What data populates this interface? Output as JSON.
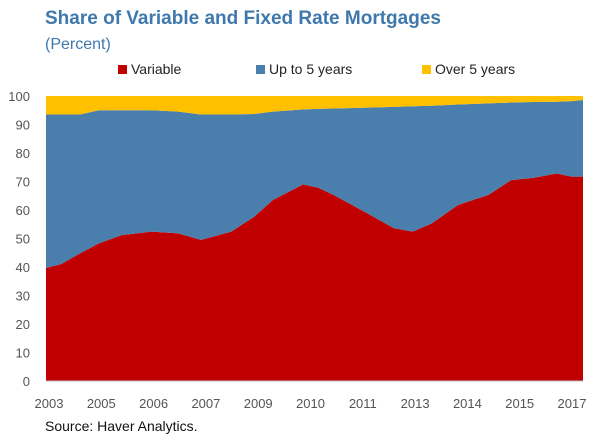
{
  "title": "Share of Variable and Fixed Rate Mortgages",
  "subtitle": "(Percent)",
  "source": "Source: Haver Analytics.",
  "chart_data": {
    "type": "area",
    "stacked": true,
    "title": "Share of Variable and Fixed Rate Mortgages",
    "ylabel": "Percent",
    "ylim": [
      0,
      100
    ],
    "yticks": [
      0,
      10,
      20,
      30,
      40,
      50,
      60,
      70,
      80,
      90,
      100
    ],
    "xlim": [
      2003.0,
      2017.2
    ],
    "xtick_labels": [
      "2003",
      "2005",
      "2006",
      "2007",
      "2009",
      "2010",
      "2011",
      "2013",
      "2014",
      "2015",
      "2017"
    ],
    "legend_position": "top",
    "x": [
      2003.0,
      2003.4,
      2003.9,
      2004.4,
      2005.0,
      2005.8,
      2006.5,
      2007.1,
      2007.9,
      2008.5,
      2009.0,
      2009.8,
      2010.2,
      2010.6,
      2011.5,
      2012.2,
      2012.7,
      2013.2,
      2013.9,
      2014.7,
      2015.3,
      2015.9,
      2016.5,
      2016.9,
      2017.2
    ],
    "series": [
      {
        "name": "Variable",
        "color": "#c00000",
        "values": [
          39.7,
          41.0,
          44.8,
          48.3,
          51.2,
          52.4,
          51.8,
          49.5,
          52.4,
          57.6,
          63.5,
          69.0,
          67.8,
          65.3,
          58.8,
          53.6,
          52.4,
          55.3,
          61.8,
          65.3,
          70.5,
          71.3,
          72.8,
          71.7,
          71.7
        ]
      },
      {
        "name": "Up to 5 years",
        "color": "#4a7fad",
        "values": [
          53.8,
          52.5,
          48.7,
          46.7,
          43.8,
          42.6,
          42.7,
          44.0,
          41.1,
          36.1,
          31.0,
          26.3,
          27.7,
          30.3,
          37.1,
          42.6,
          44.0,
          41.3,
          35.2,
          32.1,
          27.2,
          26.6,
          25.2,
          26.5,
          26.9
        ]
      },
      {
        "name": "Over 5 years",
        "color": "#ffc000",
        "values": [
          6.5,
          6.5,
          6.5,
          5.0,
          5.0,
          5.0,
          5.5,
          6.5,
          6.5,
          6.3,
          5.5,
          4.7,
          4.5,
          4.4,
          4.1,
          3.8,
          3.6,
          3.4,
          3.0,
          2.6,
          2.3,
          2.1,
          2.0,
          1.8,
          1.4
        ]
      }
    ]
  }
}
